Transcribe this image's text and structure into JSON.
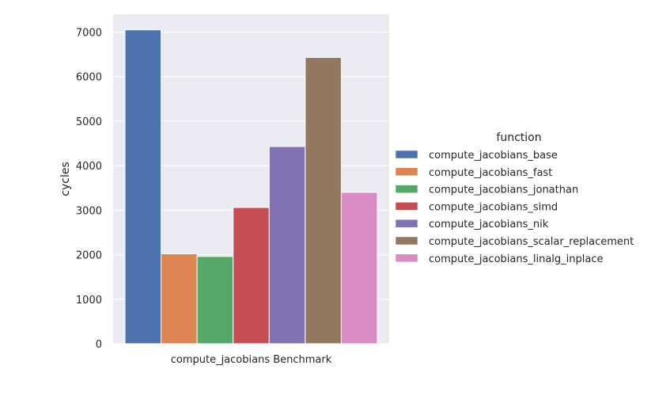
{
  "chart_data": {
    "type": "bar",
    "xlabel": "",
    "ylabel": "cycles",
    "categories": [
      "compute_jacobians Benchmark"
    ],
    "ylim": [
      0,
      7400
    ],
    "yticks": [
      0,
      1000,
      2000,
      3000,
      4000,
      5000,
      6000,
      7000
    ],
    "grid": true,
    "legend": {
      "title": "function",
      "placement": "right"
    },
    "series": [
      {
        "name": "compute_jacobians_base",
        "values": [
          7050
        ],
        "color": "#4c72b0"
      },
      {
        "name": "compute_jacobians_fast",
        "values": [
          2020
        ],
        "color": "#dd8452"
      },
      {
        "name": "compute_jacobians_jonathan",
        "values": [
          1960
        ],
        "color": "#55a868"
      },
      {
        "name": "compute_jacobians_simd",
        "values": [
          3060
        ],
        "color": "#c44e52"
      },
      {
        "name": "compute_jacobians_nik",
        "values": [
          4430
        ],
        "color": "#8172b3"
      },
      {
        "name": "compute_jacobians_scalar_replacement",
        "values": [
          6430
        ],
        "color": "#937860"
      },
      {
        "name": "compute_jacobians_linalg_inplace",
        "values": [
          3400
        ],
        "color": "#da8bc3"
      }
    ],
    "background_color": "#eaeaf2"
  }
}
